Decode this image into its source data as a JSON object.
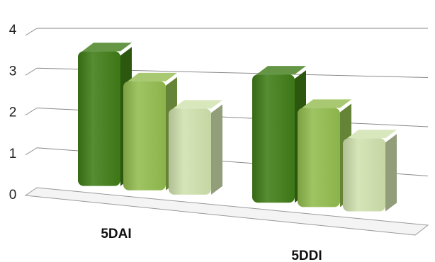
{
  "chart_data": {
    "type": "bar",
    "categories": [
      "5DAI",
      "5DDI"
    ],
    "series": [
      {
        "values": [
          3.3,
          2.85
        ],
        "color": "#3f7c16"
      },
      {
        "values": [
          2.6,
          2.15
        ],
        "color": "#92bc4e"
      },
      {
        "values": [
          2.0,
          1.55
        ],
        "color": "#cfe1ad"
      }
    ],
    "ylim": [
      0,
      4
    ],
    "yticks": [
      "0",
      "1",
      "2",
      "3",
      "4"
    ],
    "grid": true,
    "style": "3d-bars"
  }
}
